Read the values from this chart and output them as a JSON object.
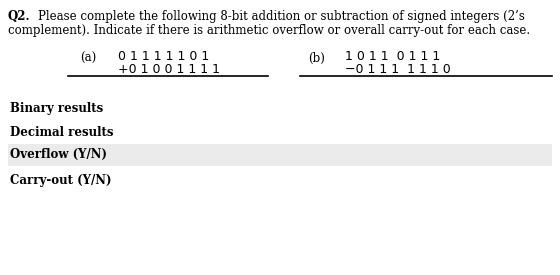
{
  "title_q": "Q2.",
  "title_text": "        Please complete the following 8-bit addition or subtraction of signed integers (2’s",
  "title_text2": "complement). Indicate if there is arithmetic overflow or overall carry-out for each case.",
  "label_a": "(a)",
  "label_b": "(b)",
  "a_top": "0 1 1 1 1 1 0 1",
  "a_bottom": "+0 1 0 0 1 1 1 1",
  "b_top": "1 0 1 1  0 1 1 1",
  "b_bottom": "−0 1 1 1  1 1 1 0",
  "row1_label": "Binary results",
  "row2_label": "Decimal results",
  "row3_label": "Overflow (Y/N)",
  "row4_label": "Carry-out (Y/N)",
  "bg_color": "#ffffff",
  "shaded_color": "#ebebeb",
  "text_color": "#000000",
  "line_color": "#000000"
}
